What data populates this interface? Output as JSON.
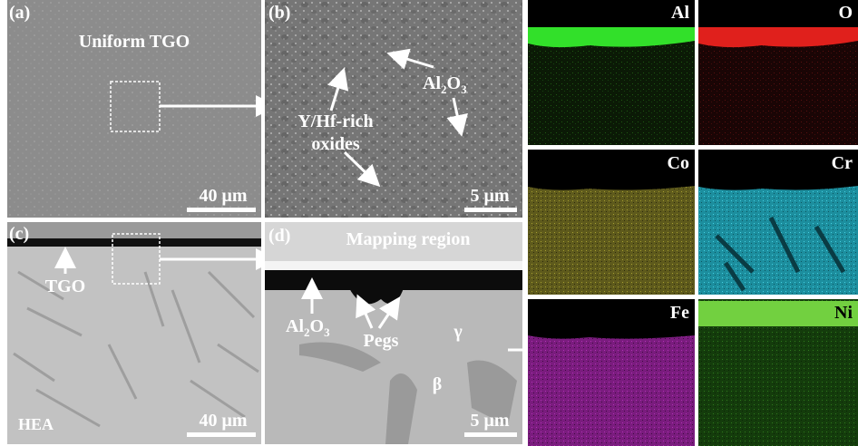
{
  "panels": {
    "a": {
      "label": "(a)",
      "caption": "Uniform TGO",
      "scale_bar": "40 μm"
    },
    "b": {
      "label": "(b)",
      "oxides": [
        "Y/Hf-rich",
        "oxides"
      ],
      "alumina": [
        "Al",
        "2",
        "O",
        "3"
      ],
      "scale_bar": "5 μm"
    },
    "c": {
      "label": "(c)",
      "tgo": "TGO",
      "substrate": "HEA",
      "scale_bar": "40 μm"
    },
    "d": {
      "label": "(d)",
      "caption": "Mapping region",
      "alumina": [
        "Al",
        "2",
        "O",
        "3"
      ],
      "pegs": "Pegs",
      "gamma": "γ",
      "beta": "β",
      "scale_bar": "5 μm"
    }
  },
  "maps": [
    {
      "element": "Al"
    },
    {
      "element": "O"
    },
    {
      "element": "Co"
    },
    {
      "element": "Cr"
    },
    {
      "element": "Fe"
    },
    {
      "element": "Ni"
    }
  ]
}
